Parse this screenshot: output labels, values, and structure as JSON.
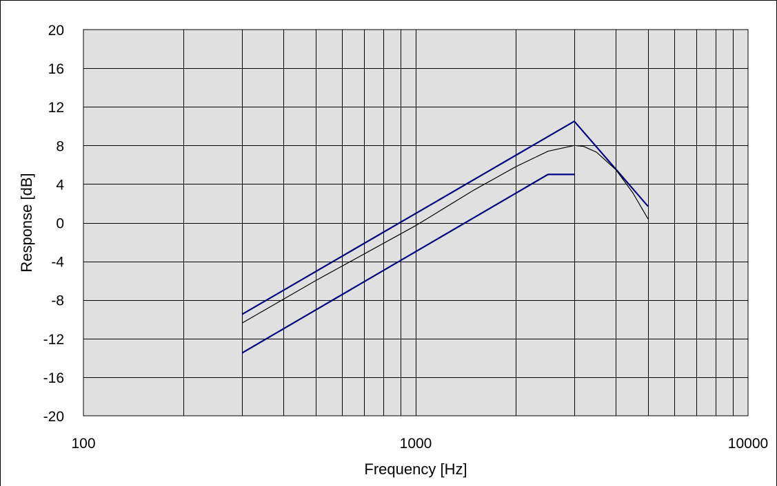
{
  "chart_data": {
    "type": "line",
    "xlabel": "Frequency [Hz]",
    "ylabel": "Response [dB]",
    "x_scale": "log",
    "xlim": [
      100,
      10000
    ],
    "ylim": [
      -20,
      20
    ],
    "grid": true,
    "x_tick_labels": [
      "100",
      "1000",
      "10000"
    ],
    "x_tick_values": [
      100,
      1000,
      10000
    ],
    "y_tick_labels": [
      "20",
      "16",
      "12",
      "8",
      "4",
      "0",
      "-4",
      "-8",
      "-12",
      "-16",
      "-20"
    ],
    "y_tick_values": [
      20,
      16,
      12,
      8,
      4,
      0,
      -4,
      -8,
      -12,
      -16,
      -20
    ],
    "series": [
      {
        "color": "#000080",
        "points": [
          [
            300,
            -9.5
          ],
          [
            3000,
            10.5
          ],
          [
            5000,
            1.7
          ]
        ]
      },
      {
        "color": "#000080",
        "points": [
          [
            300,
            -13.5
          ],
          [
            2500,
            5.0
          ],
          [
            3000,
            5.0
          ]
        ]
      },
      {
        "color": "#000000",
        "points": [
          [
            300,
            -10.4
          ],
          [
            500,
            -6.0
          ],
          [
            1000,
            -0.3
          ],
          [
            1500,
            3.4
          ],
          [
            2000,
            5.8
          ],
          [
            2500,
            7.4
          ],
          [
            3000,
            8.0
          ],
          [
            3200,
            7.9
          ],
          [
            3500,
            7.3
          ],
          [
            4000,
            5.5
          ],
          [
            4500,
            3.1
          ],
          [
            5000,
            0.4
          ]
        ]
      }
    ],
    "plot_background": "#e0e0e0",
    "grid_color": "#000000"
  }
}
